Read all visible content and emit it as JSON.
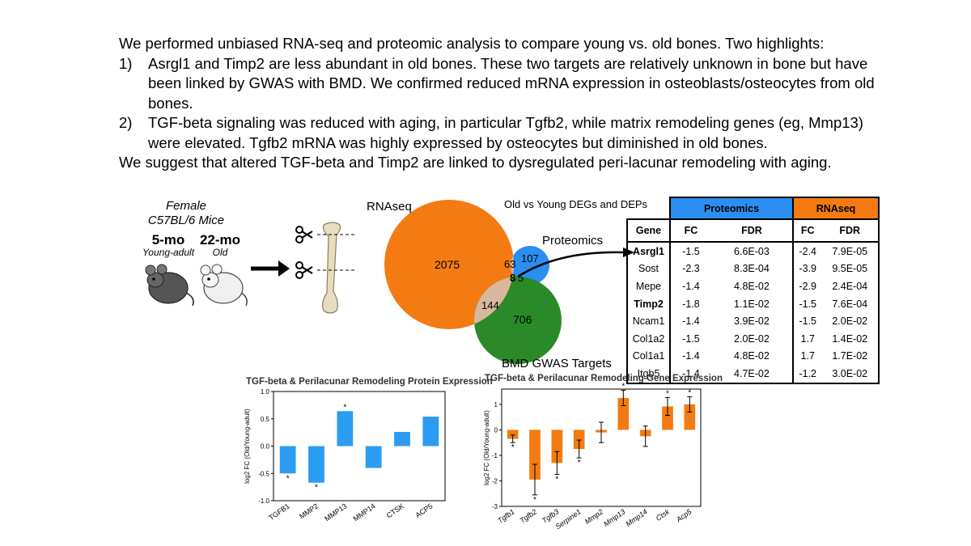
{
  "summary": {
    "intro": "We performed unbiased RNA-seq and proteomic analysis to compare young vs. old bones. Two highlights:",
    "h1_num": "1)",
    "h1_text": "Asrgl1 and Timp2 are less abundant in old bones. These two targets are relatively unknown in bone but have been linked by GWAS with BMD. We confirmed reduced mRNA expression in osteoblasts/osteocytes from old bones.",
    "h2_num": "2)",
    "h2_text": "TGF-beta signaling was reduced with aging, in particular Tgfb2, while matrix remodeling genes (eg, Mmp13) were elevated. Tgfb2 mRNA was highly expressed by osteocytes but diminished in old bones.",
    "conclusion": "We suggest that altered TGF-beta and Timp2 are linked to dysregulated peri-lacunar remodeling with aging."
  },
  "mice": {
    "title_line1": "Female",
    "title_line2": "C57BL/6 Mice",
    "young_age": "5-mo",
    "young_label": "Young-adult",
    "old_age": "22-mo",
    "old_label": "Old"
  },
  "venn": {
    "rnaseq_label": "RNAseq",
    "proteomics_label": "Proteomics",
    "gwas_label": "BMD GWAS Targets",
    "rna_only": "2075",
    "rna_prot": "63",
    "prot_only": "107",
    "all_three": "8",
    "prot_gwas": "5",
    "rna_gwas": "144",
    "gwas_only": "706",
    "colors": {
      "rnaseq": "#f37b12",
      "proteomics": "#2b8ef0",
      "gwas": "#2a8a2a",
      "overlap": "#d8b89c"
    }
  },
  "degs_table": {
    "title": "Old vs Young DEGs and DEPs",
    "group_proteomics": "Proteomics",
    "group_rnaseq": "RNAseq",
    "col_gene": "Gene",
    "col_fc": "FC",
    "col_fdr": "FDR",
    "rows": [
      {
        "gene": "Asrgl1",
        "bold": true,
        "p_fc": "-1.5",
        "p_fdr": "6.6E-03",
        "r_fc": "-2.4",
        "r_fdr": "7.9E-05"
      },
      {
        "gene": "Sost",
        "bold": false,
        "p_fc": "-2.3",
        "p_fdr": "8.3E-04",
        "r_fc": "-3.9",
        "r_fdr": "9.5E-05"
      },
      {
        "gene": "Mepe",
        "bold": false,
        "p_fc": "-1.4",
        "p_fdr": "4.8E-02",
        "r_fc": "-2.9",
        "r_fdr": "2.4E-04"
      },
      {
        "gene": "Timp2",
        "bold": true,
        "p_fc": "-1.8",
        "p_fdr": "1.1E-02",
        "r_fc": "-1.5",
        "r_fdr": "7.6E-04"
      },
      {
        "gene": "Ncam1",
        "bold": false,
        "p_fc": "-1.4",
        "p_fdr": "3.9E-02",
        "r_fc": "-1.5",
        "r_fdr": "2.0E-02"
      },
      {
        "gene": "Col1a2",
        "bold": false,
        "p_fc": "-1.5",
        "p_fdr": "2.0E-02",
        "r_fc": "1.7",
        "r_fdr": "1.4E-02"
      },
      {
        "gene": "Col1a1",
        "bold": false,
        "p_fc": "-1.4",
        "p_fdr": "4.8E-02",
        "r_fc": "1.7",
        "r_fdr": "1.7E-02"
      },
      {
        "gene": "Itgb5",
        "bold": false,
        "p_fc": "-1.4",
        "p_fdr": "4.7E-02",
        "r_fc": "-1.2",
        "r_fdr": "3.0E-02"
      }
    ]
  },
  "chart_data": [
    {
      "type": "bar",
      "title": "TGF-beta & Perilacunar Remodeling Protein Expression",
      "ylabel": "log2 FC (Old/Young-adult)",
      "categories": [
        "TGFB1",
        "MMP2",
        "MMP13",
        "MMP14",
        "CTSK",
        "ACP5"
      ],
      "values": [
        -0.5,
        -0.67,
        0.64,
        -0.4,
        0.26,
        0.54
      ],
      "significant": [
        true,
        true,
        true,
        false,
        false,
        false
      ],
      "ylim": [
        -1.0,
        1.0
      ],
      "yticks": [
        "1.0",
        "0.5",
        "0.0",
        "-0.5",
        "-1.0"
      ],
      "color": "#2b9cf2"
    },
    {
      "type": "bar",
      "title": "TGF-beta & Perilacunar Remodeling Gene Expression",
      "ylabel": "log2 FC (Old/Young-adult)",
      "categories": [
        "Tgfb1",
        "Tgfb2",
        "Tgfb3",
        "Serpine1",
        "Mmp2",
        "Mmp13",
        "Mmp14",
        "Ctsk",
        "Acp5"
      ],
      "values": [
        -0.35,
        -1.95,
        -1.3,
        -0.75,
        -0.1,
        1.25,
        -0.25,
        0.92,
        1.0
      ],
      "errors": [
        0.15,
        0.6,
        0.45,
        0.35,
        0.4,
        0.3,
        0.4,
        0.35,
        0.3
      ],
      "significant": [
        true,
        true,
        true,
        true,
        false,
        true,
        false,
        true,
        true
      ],
      "ylim": [
        -3,
        1.6
      ],
      "yticks": [
        "1",
        "0",
        "-1",
        "-2",
        "-3"
      ],
      "color": "#f37b12"
    }
  ],
  "significance_mark": "*"
}
